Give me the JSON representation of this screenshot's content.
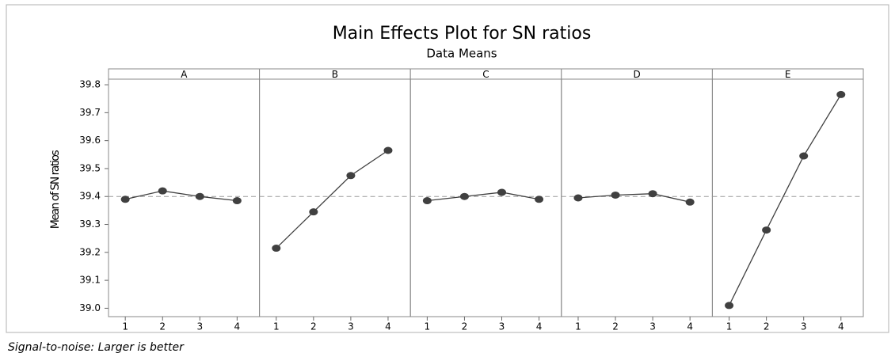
{
  "chart_data": {
    "type": "line",
    "title": "Main Effects Plot for SN ratios",
    "subtitle": "Data Means",
    "ylabel": "Mean of SN ratios",
    "footnote": "Signal-to-noise: Larger is better",
    "x": [
      1,
      2,
      3,
      4
    ],
    "xlim": [
      0.55,
      4.6
    ],
    "xticks": [
      1,
      2,
      3,
      4
    ],
    "ylim": [
      38.97,
      39.82
    ],
    "yticks": [
      {
        "value": 39,
        "label": "39.0"
      },
      39.1,
      39.2,
      39.3,
      39.4,
      39.5,
      39.6,
      39.7,
      39.8
    ],
    "reference_line": 39.4,
    "color": "#404040",
    "panels": [
      {
        "name": "A",
        "values": [
          39.39,
          39.42,
          39.4,
          39.385
        ]
      },
      {
        "name": "B",
        "values": [
          39.215,
          39.345,
          39.475,
          39.565
        ]
      },
      {
        "name": "C",
        "values": [
          39.385,
          39.4,
          39.415,
          39.39
        ]
      },
      {
        "name": "D",
        "values": [
          39.395,
          39.405,
          39.41,
          39.38
        ]
      },
      {
        "name": "E",
        "values": [
          39.01,
          39.28,
          39.545,
          39.765
        ]
      }
    ]
  }
}
